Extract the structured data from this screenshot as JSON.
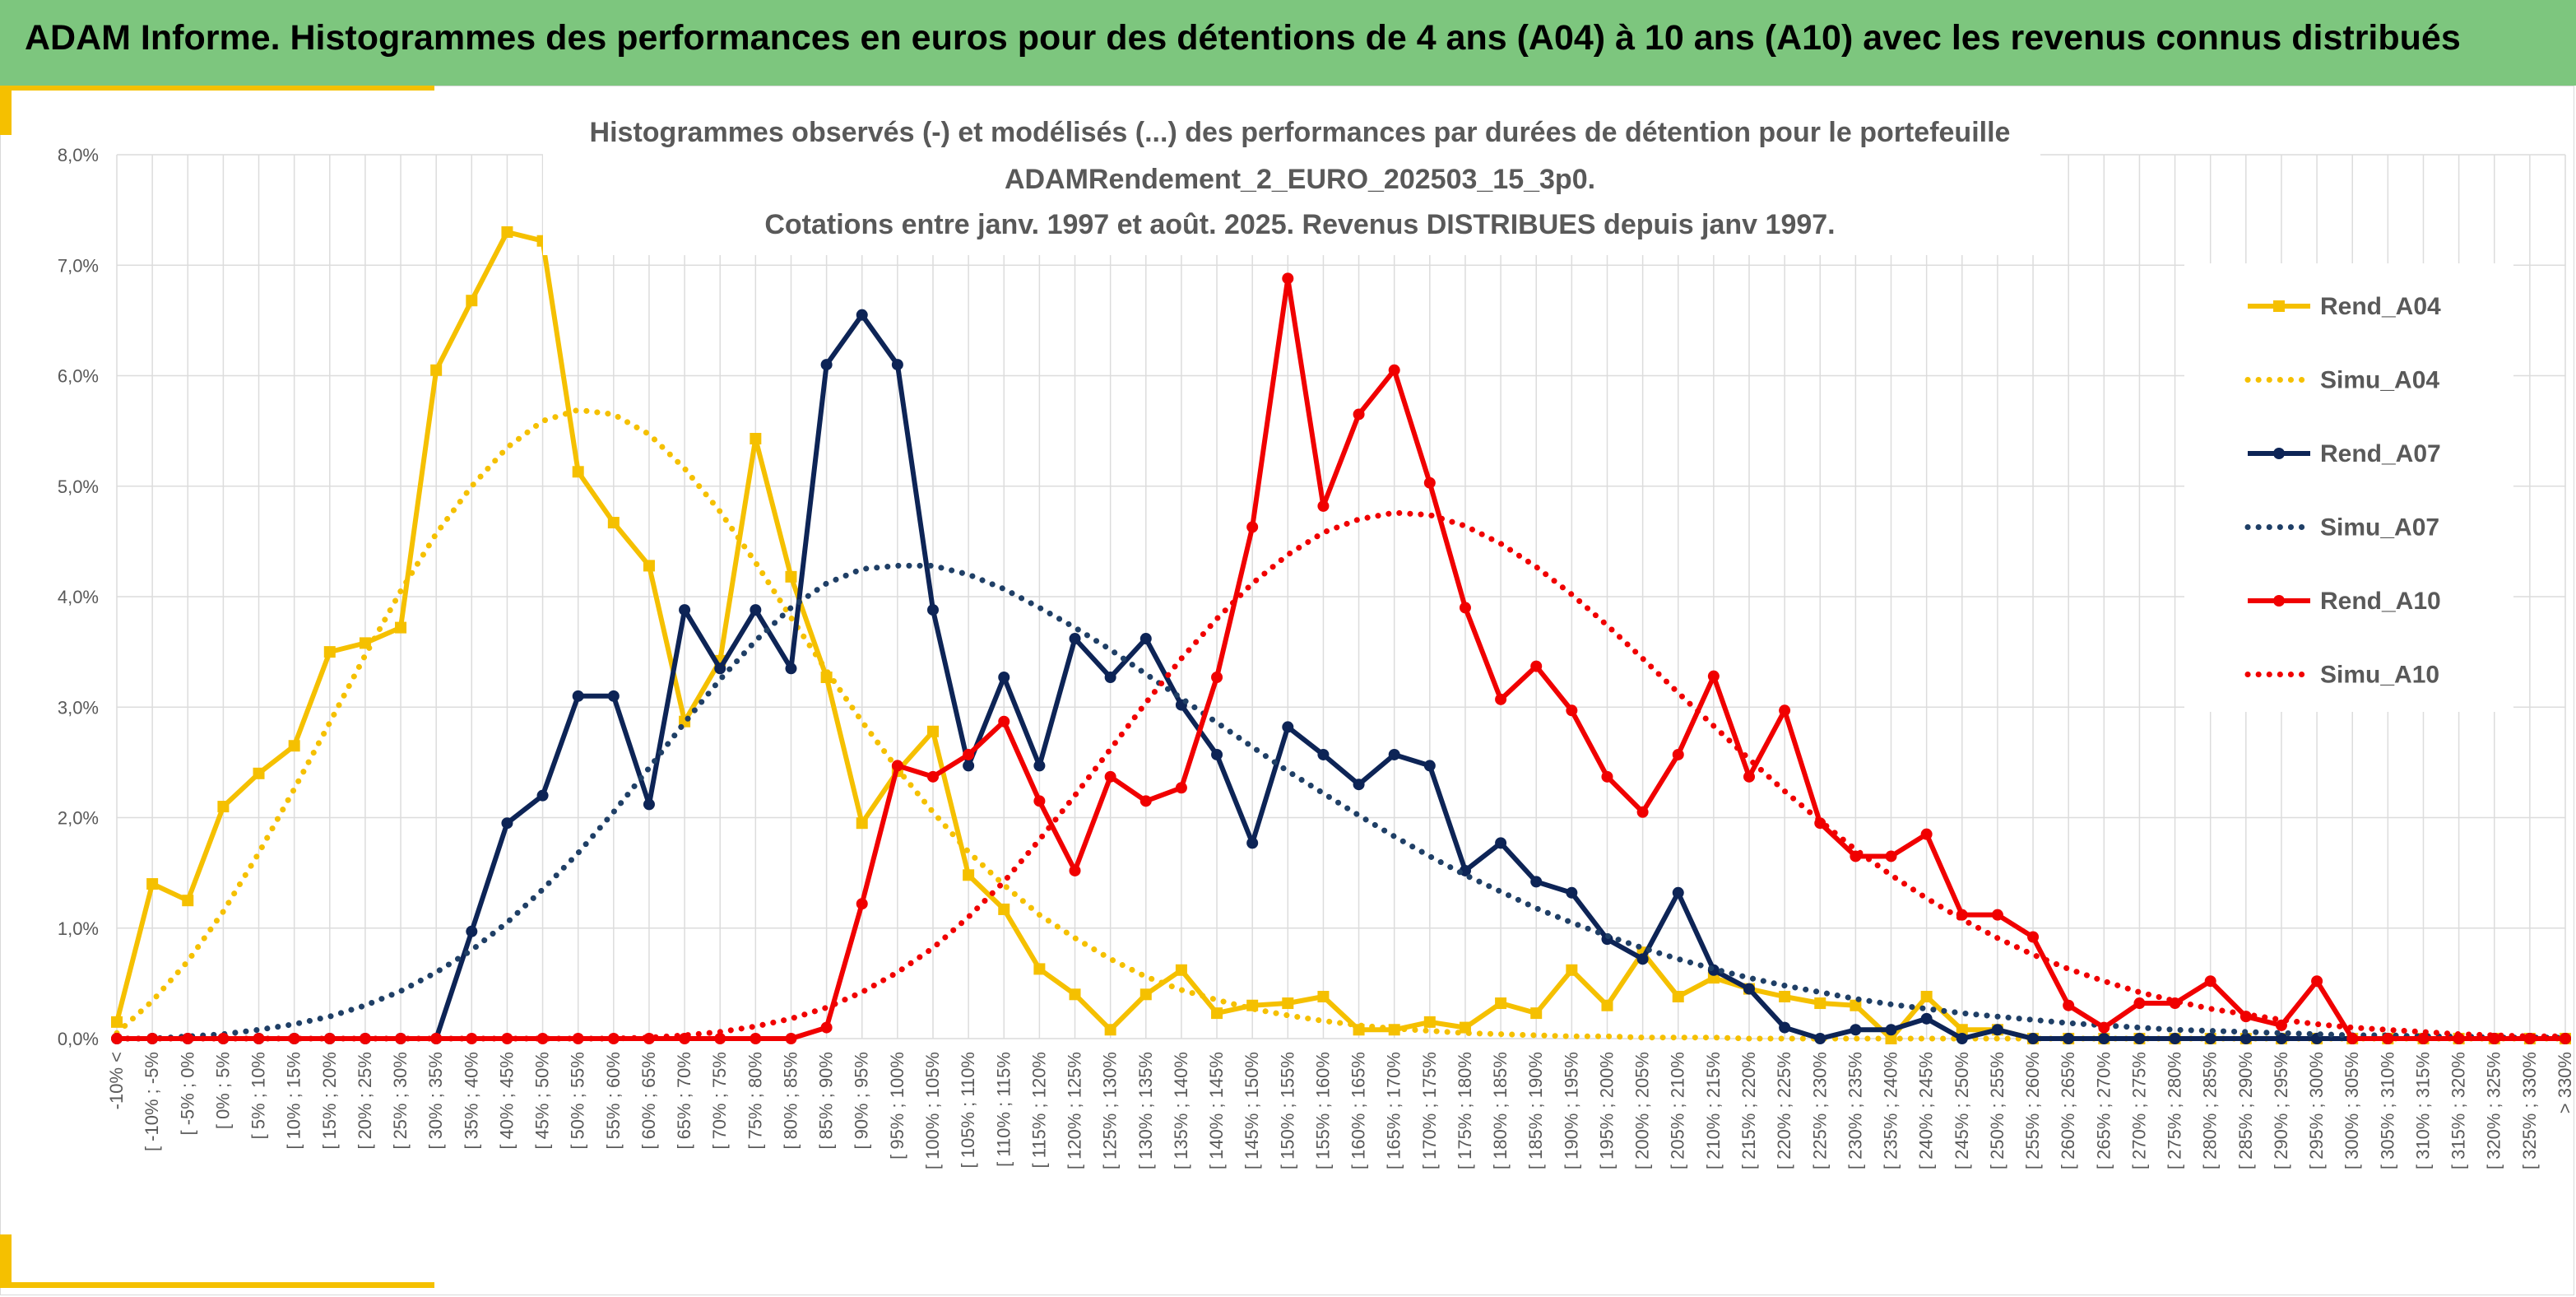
{
  "banner": {
    "title": "ADAM Informe. Histogrammes des performances en euros pour des détentions de 4 ans (A04) à 10 ans (A10) avec les revenus connus distribués",
    "color": "#7dc67e"
  },
  "chart_data": {
    "type": "line",
    "title_lines": [
      "Histogrammes observés (-) et modélisés (...) des performances par durées de détention pour le portefeuille",
      "ADAMRendement_2_EURO_202503_15_3p0.",
      "Cotations entre janv. 1997 et août. 2025. Revenus DISTRIBUES depuis janv 1997."
    ],
    "ylim": [
      0,
      8
    ],
    "y_ticks": [
      "0,0%",
      "1,0%",
      "2,0%",
      "3,0%",
      "4,0%",
      "5,0%",
      "6,0%",
      "7,0%",
      "8,0%"
    ],
    "grid": true,
    "legend_position": "right",
    "categories": [
      "-10% <",
      "[ -10% ; -5%",
      "[ -5% ; 0%",
      "[ 0% ; 5%",
      "[ 5% ; 10%",
      "[ 10% ; 15%",
      "[ 15% ; 20%",
      "[ 20% ; 25%",
      "[ 25% ; 30%",
      "[ 30% ; 35%",
      "[ 35% ; 40%",
      "[ 40% ; 45%",
      "[ 45% ; 50%",
      "[ 50% ; 55%",
      "[ 55% ; 60%",
      "[ 60% ; 65%",
      "[ 65% ; 70%",
      "[ 70% ; 75%",
      "[ 75% ; 80%",
      "[ 80% ; 85%",
      "[ 85% ; 90%",
      "[ 90% ; 95%",
      "[ 95% ; 100%",
      "[ 100% ; 105%",
      "[ 105% ; 110%",
      "[ 110% ; 115%",
      "[ 115% ; 120%",
      "[ 120% ; 125%",
      "[ 125% ; 130%",
      "[ 130% ; 135%",
      "[ 135% ; 140%",
      "[ 140% ; 145%",
      "[ 145% ; 150%",
      "[ 150% ; 155%",
      "[ 155% ; 160%",
      "[ 160% ; 165%",
      "[ 165% ; 170%",
      "[ 170% ; 175%",
      "[ 175% ; 180%",
      "[ 180% ; 185%",
      "[ 185% ; 190%",
      "[ 190% ; 195%",
      "[ 195% ; 200%",
      "[ 200% ; 205%",
      "[ 205% ; 210%",
      "[ 210% ; 215%",
      "[ 215% ; 220%",
      "[ 220% ; 225%",
      "[ 225% ; 230%",
      "[ 230% ; 235%",
      "[ 235% ; 240%",
      "[ 240% ; 245%",
      "[ 245% ; 250%",
      "[ 250% ; 255%",
      "[ 255% ; 260%",
      "[ 260% ; 265%",
      "[ 265% ; 270%",
      "[ 270% ; 275%",
      "[ 275% ; 280%",
      "[ 280% ; 285%",
      "[ 285% ; 290%",
      "[ 290% ; 295%",
      "[ 295% ; 300%",
      "[ 300% ; 305%",
      "[ 305% ; 310%",
      "[ 310% ; 315%",
      "[ 315% ; 320%",
      "[ 320% ; 325%",
      "[ 325% ; 330%",
      "> 330%"
    ],
    "series": [
      {
        "name": "Rend_A04",
        "color": "#f5c000",
        "style": "solid",
        "marker": "square",
        "values": [
          0.15,
          1.4,
          1.25,
          2.1,
          2.4,
          2.65,
          3.5,
          3.58,
          3.72,
          6.05,
          6.68,
          7.3,
          7.22,
          5.13,
          4.67,
          4.28,
          2.87,
          3.42,
          5.43,
          4.18,
          3.27,
          1.95,
          2.42,
          2.78,
          1.48,
          1.17,
          0.63,
          0.4,
          0.08,
          0.4,
          0.62,
          0.23,
          0.3,
          0.32,
          0.38,
          0.08,
          0.08,
          0.15,
          0.1,
          0.32,
          0.23,
          0.62,
          0.3,
          0.78,
          0.38,
          0.55,
          0.45,
          0.38,
          0.32,
          0.3,
          0.0,
          0.38,
          0.08,
          0.08,
          0.0,
          0.0,
          0.0,
          0.0,
          0.0,
          0.0,
          0.0,
          0.0,
          0.0,
          0.0,
          0.0,
          0.0,
          0.0,
          0.0,
          0.0,
          0.0
        ]
      },
      {
        "name": "Simu_A04",
        "color": "#f5c000",
        "style": "dotted",
        "values": [
          0.05,
          0.34,
          0.7,
          1.15,
          1.68,
          2.26,
          2.86,
          3.47,
          4.05,
          4.57,
          5.0,
          5.35,
          5.59,
          5.69,
          5.65,
          5.47,
          5.16,
          4.77,
          4.31,
          3.81,
          3.33,
          2.87,
          2.44,
          2.05,
          1.69,
          1.39,
          1.12,
          0.91,
          0.72,
          0.56,
          0.44,
          0.35,
          0.27,
          0.21,
          0.16,
          0.12,
          0.09,
          0.07,
          0.05,
          0.04,
          0.03,
          0.02,
          0.02,
          0.01,
          0.01,
          0.01,
          0.0,
          0.0,
          0.0,
          0.0,
          0.0,
          0.0,
          0.0,
          0.0,
          0.0,
          0.0,
          0.0,
          0.0,
          0.0,
          0.0,
          0.0,
          0.0,
          0.0,
          0.0,
          0.0,
          0.0,
          0.0,
          0.0,
          0.0,
          0.0
        ]
      },
      {
        "name": "Rend_A07",
        "color": "#0d2456",
        "style": "solid",
        "marker": "circle",
        "values": [
          0.0,
          0.0,
          0.0,
          0.0,
          0.0,
          0.0,
          0.0,
          0.0,
          0.0,
          0.0,
          0.97,
          1.95,
          2.2,
          3.1,
          3.1,
          2.12,
          3.88,
          3.35,
          3.88,
          3.35,
          6.1,
          6.55,
          6.1,
          3.88,
          2.47,
          3.27,
          2.47,
          3.62,
          3.27,
          3.62,
          3.02,
          2.57,
          1.77,
          2.82,
          2.57,
          2.3,
          2.57,
          2.47,
          1.52,
          1.77,
          1.42,
          1.32,
          0.9,
          0.72,
          1.32,
          0.62,
          0.45,
          0.1,
          0.0,
          0.08,
          0.08,
          0.18,
          0.0,
          0.08,
          0.0,
          0.0,
          0.0,
          0.0,
          0.0,
          0.0,
          0.0,
          0.0,
          0.0,
          0.0,
          0.0,
          0.0,
          0.0,
          0.0,
          0.0,
          0.0
        ]
      },
      {
        "name": "Simu_A07",
        "color": "#1f3f66",
        "style": "dotted",
        "values": [
          0.0,
          0.0,
          0.02,
          0.04,
          0.08,
          0.13,
          0.2,
          0.3,
          0.43,
          0.6,
          0.8,
          1.05,
          1.35,
          1.68,
          2.05,
          2.45,
          2.86,
          3.25,
          3.6,
          3.9,
          4.12,
          4.25,
          4.28,
          4.28,
          4.2,
          4.07,
          3.9,
          3.72,
          3.52,
          3.3,
          3.08,
          2.86,
          2.64,
          2.42,
          2.22,
          2.02,
          1.83,
          1.65,
          1.48,
          1.33,
          1.18,
          1.05,
          0.93,
          0.82,
          0.72,
          0.63,
          0.55,
          0.48,
          0.42,
          0.36,
          0.31,
          0.27,
          0.23,
          0.2,
          0.17,
          0.14,
          0.12,
          0.1,
          0.08,
          0.07,
          0.06,
          0.05,
          0.04,
          0.03,
          0.03,
          0.02,
          0.02,
          0.01,
          0.01,
          0.01
        ]
      },
      {
        "name": "Rend_A10",
        "color": "#f00000",
        "style": "solid",
        "marker": "circle",
        "values": [
          0.0,
          0.0,
          0.0,
          0.0,
          0.0,
          0.0,
          0.0,
          0.0,
          0.0,
          0.0,
          0.0,
          0.0,
          0.0,
          0.0,
          0.0,
          0.0,
          0.0,
          0.0,
          0.0,
          0.0,
          0.1,
          1.22,
          2.47,
          2.37,
          2.57,
          2.87,
          2.15,
          1.52,
          2.37,
          2.15,
          2.27,
          3.27,
          4.63,
          6.88,
          4.82,
          5.65,
          6.05,
          5.03,
          3.9,
          3.07,
          3.37,
          2.97,
          2.37,
          2.05,
          2.57,
          3.28,
          2.37,
          2.97,
          1.95,
          1.65,
          1.65,
          1.85,
          1.12,
          1.12,
          0.92,
          0.3,
          0.1,
          0.32,
          0.32,
          0.52,
          0.2,
          0.12,
          0.52,
          0.0,
          0.0,
          0.0,
          0.0,
          0.0,
          0.0,
          0.0
        ]
      },
      {
        "name": "Simu_A10",
        "color": "#f00000",
        "style": "dotted",
        "values": [
          0.0,
          0.0,
          0.0,
          0.0,
          0.0,
          0.0,
          0.0,
          0.0,
          0.0,
          0.0,
          0.0,
          0.0,
          0.0,
          0.0,
          0.0,
          0.01,
          0.03,
          0.06,
          0.11,
          0.18,
          0.28,
          0.42,
          0.6,
          0.82,
          1.1,
          1.42,
          1.8,
          2.2,
          2.62,
          3.04,
          3.44,
          3.8,
          4.12,
          4.38,
          4.58,
          4.7,
          4.76,
          4.74,
          4.64,
          4.48,
          4.27,
          4.02,
          3.74,
          3.44,
          3.13,
          2.83,
          2.53,
          2.24,
          1.97,
          1.71,
          1.48,
          1.27,
          1.08,
          0.91,
          0.76,
          0.63,
          0.52,
          0.42,
          0.34,
          0.27,
          0.22,
          0.17,
          0.13,
          0.1,
          0.08,
          0.06,
          0.04,
          0.03,
          0.02,
          0.02
        ]
      }
    ]
  }
}
